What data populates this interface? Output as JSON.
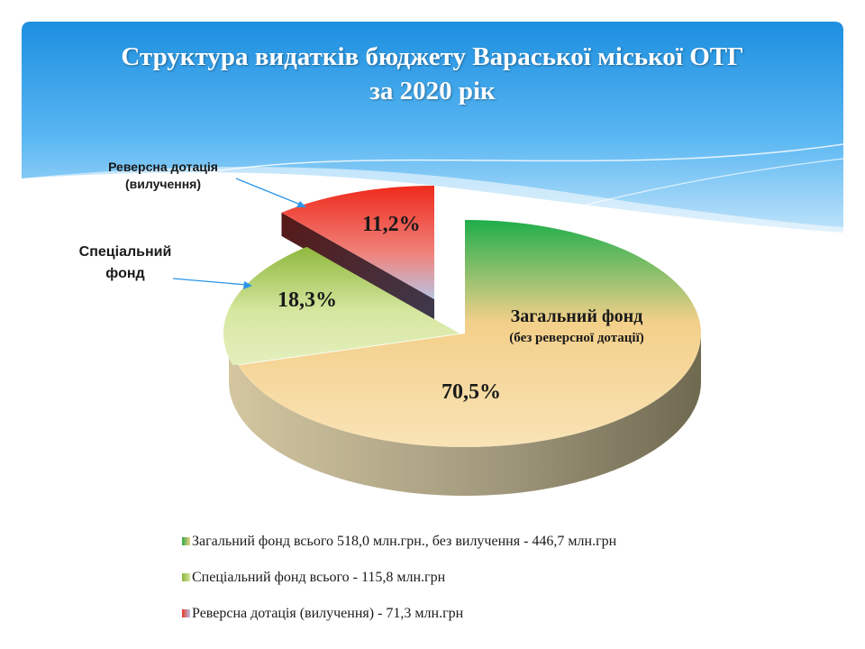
{
  "chart_data": {
    "type": "pie",
    "title": "Структура видатків бюджету Вараської міської ОТГ",
    "subtitle": "за 2020 рік",
    "slices": [
      {
        "name": "Загальний фонд",
        "note": "(без реверсної дотації)",
        "percent": 70.5,
        "label": "70,5%",
        "color": "#f6d28c"
      },
      {
        "name": "Спеціальний фонд",
        "percent": 18.3,
        "label": "18,3%",
        "color": "#cfe08f"
      },
      {
        "name": "Реверсна дотація (вилучення)",
        "percent": 11.2,
        "label": "11,2%",
        "color": "#e83a2a"
      }
    ],
    "side_labels": {
      "reverse_line1": "Реверсна дотація",
      "reverse_line2": "(вилучення)",
      "special_line1": "Спеціальний",
      "special_line2": "фонд"
    },
    "legend": [
      {
        "text": "Загальний фонд всього 518,0 млн.грн., без вилучення - 446,7 млн.грн",
        "color": "#2eaa4a"
      },
      {
        "text": "Спеціальний фонд всього - 115,8 млн.грн",
        "color": "#8db33a"
      },
      {
        "text": "Реверсна дотація (вилучення) - 71,3 млн.грн",
        "color": "#e53a2a"
      }
    ],
    "legend_position": "bottom"
  }
}
